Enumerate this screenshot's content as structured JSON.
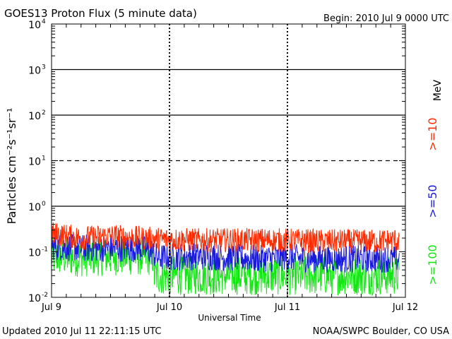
{
  "chart_data": {
    "type": "line",
    "title": "GOES13 Proton Flux (5 minute data)",
    "begin_label": "Begin: 2010 Jul 9 0000 UTC",
    "xlabel": "Universal Time",
    "ylabel": "Particles cm⁻²s⁻¹sr⁻¹",
    "yscale": "log",
    "ylim": [
      0.01,
      10000
    ],
    "xlim": [
      0,
      3
    ],
    "x_unit": "days since 2010 Jul 9 00:00 UTC",
    "x_ticks": [
      {
        "value": 0,
        "label": "Jul 9"
      },
      {
        "value": 1,
        "label": "Jul 10"
      },
      {
        "value": 2,
        "label": "Jul 11"
      },
      {
        "value": 3,
        "label": "Jul 12"
      }
    ],
    "y_ticks": [
      {
        "base": "10",
        "exp": "-2",
        "value": 0.01
      },
      {
        "base": "10",
        "exp": "-1",
        "value": 0.1
      },
      {
        "base": "10",
        "exp": "0",
        "value": 1
      },
      {
        "base": "10",
        "exp": "1",
        "value": 10
      },
      {
        "base": "10",
        "exp": "2",
        "value": 100
      },
      {
        "base": "10",
        "exp": "3",
        "value": 1000
      },
      {
        "base": "10",
        "exp": "4",
        "value": 10000
      }
    ],
    "threshold_lines": [
      {
        "value": 1,
        "style": "solid"
      },
      {
        "value": 10,
        "style": "dashed"
      },
      {
        "value": 100,
        "style": "solid"
      },
      {
        "value": 1000,
        "style": "solid"
      }
    ],
    "legend_unit": "MeV",
    "series": [
      {
        "name": ">=10",
        "color": "#ff2a00",
        "data_end": 2.95,
        "points": [
          [
            0,
            0.25
          ],
          [
            0.25,
            0.2
          ],
          [
            0.5,
            0.22
          ],
          [
            0.75,
            0.2
          ],
          [
            0.9,
            0.19
          ],
          [
            1.25,
            0.18
          ],
          [
            1.5,
            0.18
          ],
          [
            1.75,
            0.18
          ],
          [
            2,
            0.18
          ],
          [
            2.25,
            0.17
          ],
          [
            2.5,
            0.17
          ],
          [
            2.75,
            0.17
          ],
          [
            2.95,
            0.18
          ]
        ]
      },
      {
        "name": ">=50",
        "color": "#1a1adc",
        "data_end": 2.95,
        "points": [
          [
            0,
            0.13
          ],
          [
            0.25,
            0.12
          ],
          [
            0.5,
            0.12
          ],
          [
            0.75,
            0.12
          ],
          [
            0.85,
            0.1
          ],
          [
            0.9,
            0.075
          ],
          [
            1.25,
            0.08
          ],
          [
            1.5,
            0.075
          ],
          [
            1.75,
            0.07
          ],
          [
            2,
            0.075
          ],
          [
            2.25,
            0.07
          ],
          [
            2.5,
            0.07
          ],
          [
            2.75,
            0.07
          ],
          [
            2.95,
            0.07
          ]
        ]
      },
      {
        "name": ">=100",
        "color": "#14e614",
        "data_end": 2.95,
        "points": [
          [
            0,
            0.08
          ],
          [
            0.25,
            0.075
          ],
          [
            0.5,
            0.08
          ],
          [
            0.75,
            0.08
          ],
          [
            0.86,
            0.08
          ],
          [
            0.87,
            0.03
          ],
          [
            1.25,
            0.03
          ],
          [
            1.5,
            0.03
          ],
          [
            1.75,
            0.03
          ],
          [
            2,
            0.03
          ],
          [
            2.25,
            0.03
          ],
          [
            2.5,
            0.03
          ],
          [
            2.75,
            0.03
          ],
          [
            2.95,
            0.03
          ]
        ]
      }
    ]
  },
  "footer": {
    "updated": "Updated 2010 Jul 11 22:11:15 UTC",
    "source": "NOAA/SWPC Boulder, CO USA"
  }
}
